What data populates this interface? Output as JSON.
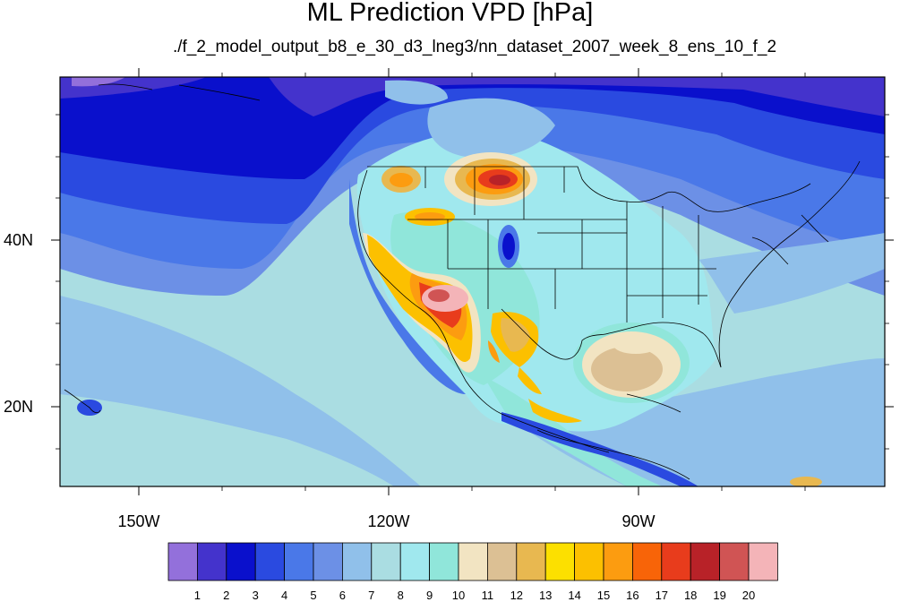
{
  "figure": {
    "title": "ML Prediction VPD [hPa]",
    "subtitle": "./f_2_model_output_b8_e_30_d3_lneg3/nn_dataset_2007_week_8_ens_10_f_2"
  },
  "map": {
    "lon_labels": [
      "150W",
      "120W",
      "90W"
    ],
    "lat_labels": [
      "40N",
      "20N"
    ],
    "projection": "cylindrical equidistant",
    "lon_range": [
      -160,
      -58
    ],
    "lat_range": [
      10,
      59
    ]
  },
  "colorbar": {
    "labels": [
      "1",
      "2",
      "3",
      "4",
      "5",
      "6",
      "7",
      "8",
      "9",
      "10",
      "11",
      "12",
      "13",
      "14",
      "15",
      "16",
      "17",
      "18",
      "19",
      "20"
    ],
    "colors": [
      "#9370db",
      "#4433cc",
      "#0a10cc",
      "#2a4ae0",
      "#4a78e8",
      "#6c90e6",
      "#90c0ea",
      "#aadde2",
      "#a0e8ee",
      "#90e6da",
      "#f2e4c2",
      "#dcc094",
      "#e8b850",
      "#fce000",
      "#fcc000",
      "#fc9c10",
      "#f86408",
      "#e83c1c",
      "#b82228",
      "#d05454",
      "#f4b4b8"
    ]
  }
}
